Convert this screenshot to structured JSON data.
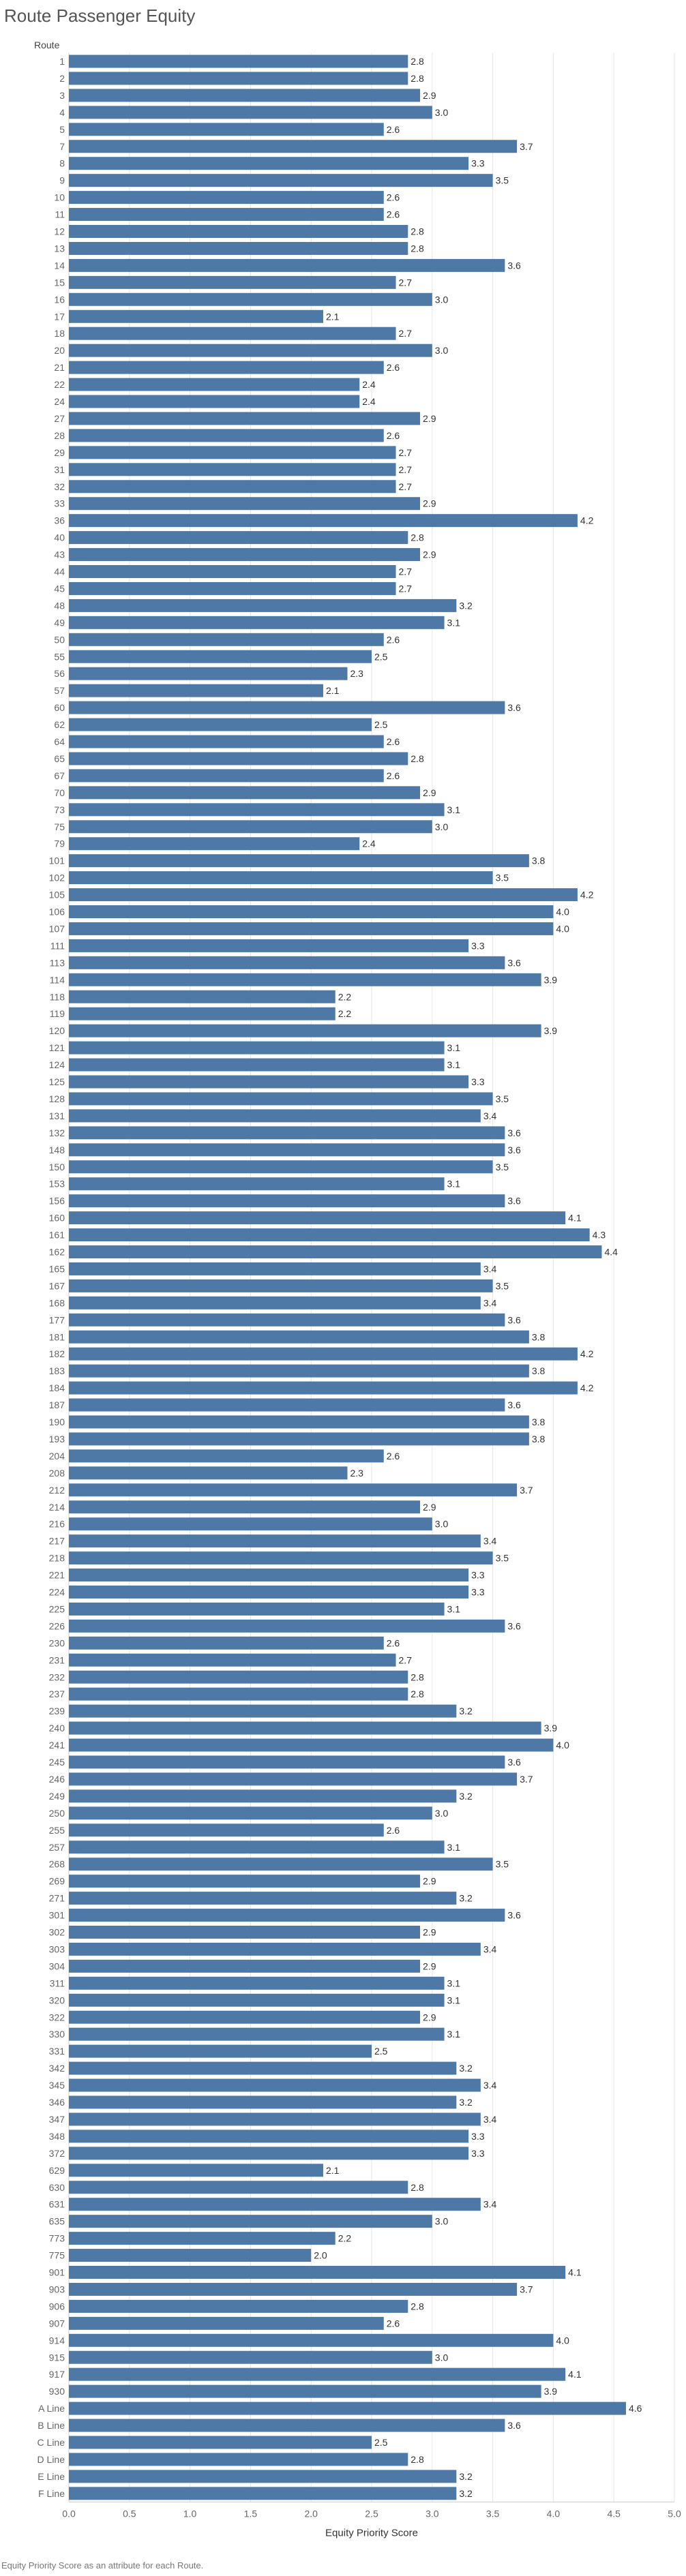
{
  "title": "Route Passenger Equity",
  "row_header": "Route",
  "footnote": "Equity Priority Score as an attribute for each Route.",
  "colors": {
    "bar": "#4e79a7",
    "grid": "#e6e6e6",
    "axis": "#cccccc"
  },
  "chart_data": {
    "type": "bar",
    "orientation": "horizontal",
    "title": "Route Passenger Equity",
    "xlabel": "Equity Priority Score",
    "ylabel": "Route",
    "xlim": [
      0,
      5
    ],
    "xticks": [
      "0.0",
      "0.5",
      "1.0",
      "1.5",
      "2.0",
      "2.5",
      "3.0",
      "3.5",
      "4.0",
      "4.5",
      "5.0"
    ],
    "grid": true,
    "categories": [
      "1",
      "2",
      "3",
      "4",
      "5",
      "7",
      "8",
      "9",
      "10",
      "11",
      "12",
      "13",
      "14",
      "15",
      "16",
      "17",
      "18",
      "20",
      "21",
      "22",
      "24",
      "27",
      "28",
      "29",
      "31",
      "32",
      "33",
      "36",
      "40",
      "43",
      "44",
      "45",
      "48",
      "49",
      "50",
      "55",
      "56",
      "57",
      "60",
      "62",
      "64",
      "65",
      "67",
      "70",
      "73",
      "75",
      "79",
      "101",
      "102",
      "105",
      "106",
      "107",
      "111",
      "113",
      "114",
      "118",
      "119",
      "120",
      "121",
      "124",
      "125",
      "128",
      "131",
      "132",
      "148",
      "150",
      "153",
      "156",
      "160",
      "161",
      "162",
      "165",
      "167",
      "168",
      "177",
      "181",
      "182",
      "183",
      "184",
      "187",
      "190",
      "193",
      "204",
      "208",
      "212",
      "214",
      "216",
      "217",
      "218",
      "221",
      "224",
      "225",
      "226",
      "230",
      "231",
      "232",
      "237",
      "239",
      "240",
      "241",
      "245",
      "246",
      "249",
      "250",
      "255",
      "257",
      "268",
      "269",
      "271",
      "301",
      "302",
      "303",
      "304",
      "311",
      "320",
      "322",
      "330",
      "331",
      "342",
      "345",
      "346",
      "347",
      "348",
      "372",
      "629",
      "630",
      "631",
      "635",
      "773",
      "775",
      "901",
      "903",
      "906",
      "907",
      "914",
      "915",
      "917",
      "930",
      "A Line",
      "B Line",
      "C Line",
      "D Line",
      "E Line",
      "F Line"
    ],
    "values": [
      2.8,
      2.8,
      2.9,
      3.0,
      2.6,
      3.7,
      3.3,
      3.5,
      2.6,
      2.6,
      2.8,
      2.8,
      3.6,
      2.7,
      3.0,
      2.1,
      2.7,
      3.0,
      2.6,
      2.4,
      2.4,
      2.9,
      2.6,
      2.7,
      2.7,
      2.7,
      2.9,
      4.2,
      2.8,
      2.9,
      2.7,
      2.7,
      3.2,
      3.1,
      2.6,
      2.5,
      2.3,
      2.1,
      3.6,
      2.5,
      2.6,
      2.8,
      2.6,
      2.9,
      3.1,
      3.0,
      2.4,
      3.8,
      3.5,
      4.2,
      4.0,
      4.0,
      3.3,
      3.6,
      3.9,
      2.2,
      2.2,
      3.9,
      3.1,
      3.1,
      3.3,
      3.5,
      3.4,
      3.6,
      3.6,
      3.5,
      3.1,
      3.6,
      4.1,
      4.3,
      4.4,
      3.4,
      3.5,
      3.4,
      3.6,
      3.8,
      4.2,
      3.8,
      4.2,
      3.6,
      3.8,
      3.8,
      2.6,
      2.3,
      3.7,
      2.9,
      3.0,
      3.4,
      3.5,
      3.3,
      3.3,
      3.1,
      3.6,
      2.6,
      2.7,
      2.8,
      2.8,
      3.2,
      3.9,
      4.0,
      3.6,
      3.7,
      3.2,
      3.0,
      2.6,
      3.1,
      3.5,
      2.9,
      3.2,
      3.6,
      2.9,
      3.4,
      2.9,
      3.1,
      3.1,
      2.9,
      3.1,
      2.5,
      3.2,
      3.4,
      3.2,
      3.4,
      3.3,
      3.3,
      2.1,
      2.8,
      3.4,
      3.0,
      2.2,
      2.0,
      4.1,
      3.7,
      2.8,
      2.6,
      4.0,
      3.0,
      4.1,
      3.9,
      4.6,
      3.6,
      2.5,
      2.8,
      3.2,
      3.2
    ],
    "data_labels": [
      "2.8",
      "2.8",
      "2.9",
      "3.0",
      "2.6",
      "3.7",
      "3.3",
      "3.5",
      "2.6",
      "2.6",
      "2.8",
      "2.8",
      "3.6",
      "2.7",
      "3.0",
      "2.1",
      "2.7",
      "3.0",
      "2.6",
      "2.4",
      "2.4",
      "2.9",
      "2.6",
      "2.7",
      "2.7",
      "2.7",
      "2.9",
      "4.2",
      "2.8",
      "2.9",
      "2.7",
      "2.7",
      "3.2",
      "3.1",
      "2.6",
      "2.5",
      "2.3",
      "2.1",
      "3.6",
      "2.5",
      "2.6",
      "2.8",
      "2.6",
      "2.9",
      "3.1",
      "3.0",
      "2.4",
      "3.8",
      "3.5",
      "4.2",
      "4.0",
      "4.0",
      "3.3",
      "3.6",
      "3.9",
      "2.2",
      "2.2",
      "3.9",
      "3.1",
      "3.1",
      "3.3",
      "3.5",
      "3.4",
      "3.6",
      "3.6",
      "3.5",
      "3.1",
      "3.6",
      "4.1",
      "4.3",
      "4.4",
      "3.4",
      "3.5",
      "3.4",
      "3.6",
      "3.8",
      "4.2",
      "3.8",
      "4.2",
      "3.6",
      "3.8",
      "3.8",
      "2.6",
      "2.3",
      "3.7",
      "2.9",
      "3.0",
      "3.4",
      "3.5",
      "3.3",
      "3.3",
      "3.1",
      "3.6",
      "2.6",
      "2.7",
      "2.8",
      "2.8",
      "3.2",
      "3.9",
      "4.0",
      "3.6",
      "3.7",
      "3.2",
      "3.0",
      "2.6",
      "3.1",
      "3.5",
      "2.9",
      "3.2",
      "3.6",
      "2.9",
      "3.4",
      "2.9",
      "3.1",
      "3.1",
      "2.9",
      "3.1",
      "2.5",
      "3.2",
      "3.4",
      "3.2",
      "3.4",
      "3.3",
      "3.3",
      "2.1",
      "2.8",
      "3.4",
      "3.0",
      "2.2",
      "2.0",
      "4.1",
      "3.7",
      "2.8",
      "2.6",
      "4.0",
      "3.0",
      "4.1",
      "3.9",
      "4.6",
      "3.6",
      "2.5",
      "2.8",
      "3.2",
      "3.2"
    ]
  }
}
